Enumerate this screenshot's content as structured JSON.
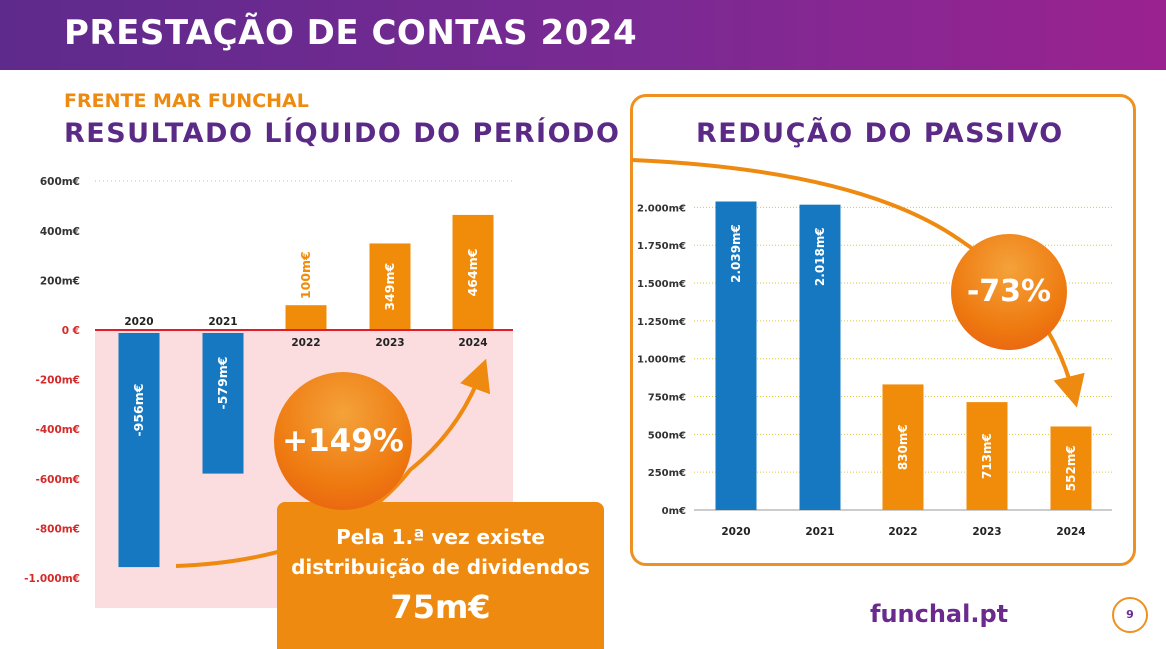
{
  "header": {
    "title": "PRESTAÇÃO DE CONTAS 2024"
  },
  "subtitle": "FRENTE MAR FUNCHAL",
  "colors": {
    "positive": "#f08c0a",
    "negative": "#1578c1",
    "purple": "#5b2a86",
    "accent": "#ee8a10"
  },
  "chart_data": [
    {
      "type": "bar",
      "title": "RESULTADO LÍQUIDO DO PERÍODO",
      "categories": [
        "2020",
        "2021",
        "2022",
        "2023",
        "2024"
      ],
      "values": [
        -956,
        -579,
        100,
        349,
        464
      ],
      "value_labels": [
        "-956m€",
        "-579m€",
        "100m€",
        "349m€",
        "464m€"
      ],
      "yticks": [
        600,
        400,
        200,
        0,
        -200,
        -400,
        -600,
        -800,
        -1000
      ],
      "ytick_labels": [
        "600m€",
        "400m€",
        "200m€",
        "0 €",
        "-200m€",
        "-400m€",
        "-600m€",
        "-800m€",
        "-1.000m€"
      ],
      "ylim": [
        -1000,
        600
      ]
    },
    {
      "type": "bar",
      "title": "REDUÇÃO DO PASSIVO",
      "categories": [
        "2020",
        "2021",
        "2022",
        "2023",
        "2024"
      ],
      "values": [
        2039,
        2018,
        830,
        713,
        552
      ],
      "value_labels": [
        "2.039m€",
        "2.018m€",
        "830m€",
        "713m€",
        "552m€"
      ],
      "yticks": [
        0,
        250,
        500,
        750,
        1000,
        1250,
        1500,
        1750,
        2000
      ],
      "ytick_labels": [
        "0m€",
        "250m€",
        "500m€",
        "750m€",
        "1.000m€",
        "1.250m€",
        "1.500m€",
        "1.750m€",
        "2.000m€"
      ],
      "ylim": [
        0,
        2000
      ]
    }
  ],
  "badges": {
    "growth": "+149%",
    "reduction": "-73%"
  },
  "callout": {
    "line1": "Pela 1.ª vez existe",
    "line2": "distribuição de dividendos",
    "value": "75m€"
  },
  "footer": {
    "brand": "funchal.pt",
    "page": "9"
  }
}
